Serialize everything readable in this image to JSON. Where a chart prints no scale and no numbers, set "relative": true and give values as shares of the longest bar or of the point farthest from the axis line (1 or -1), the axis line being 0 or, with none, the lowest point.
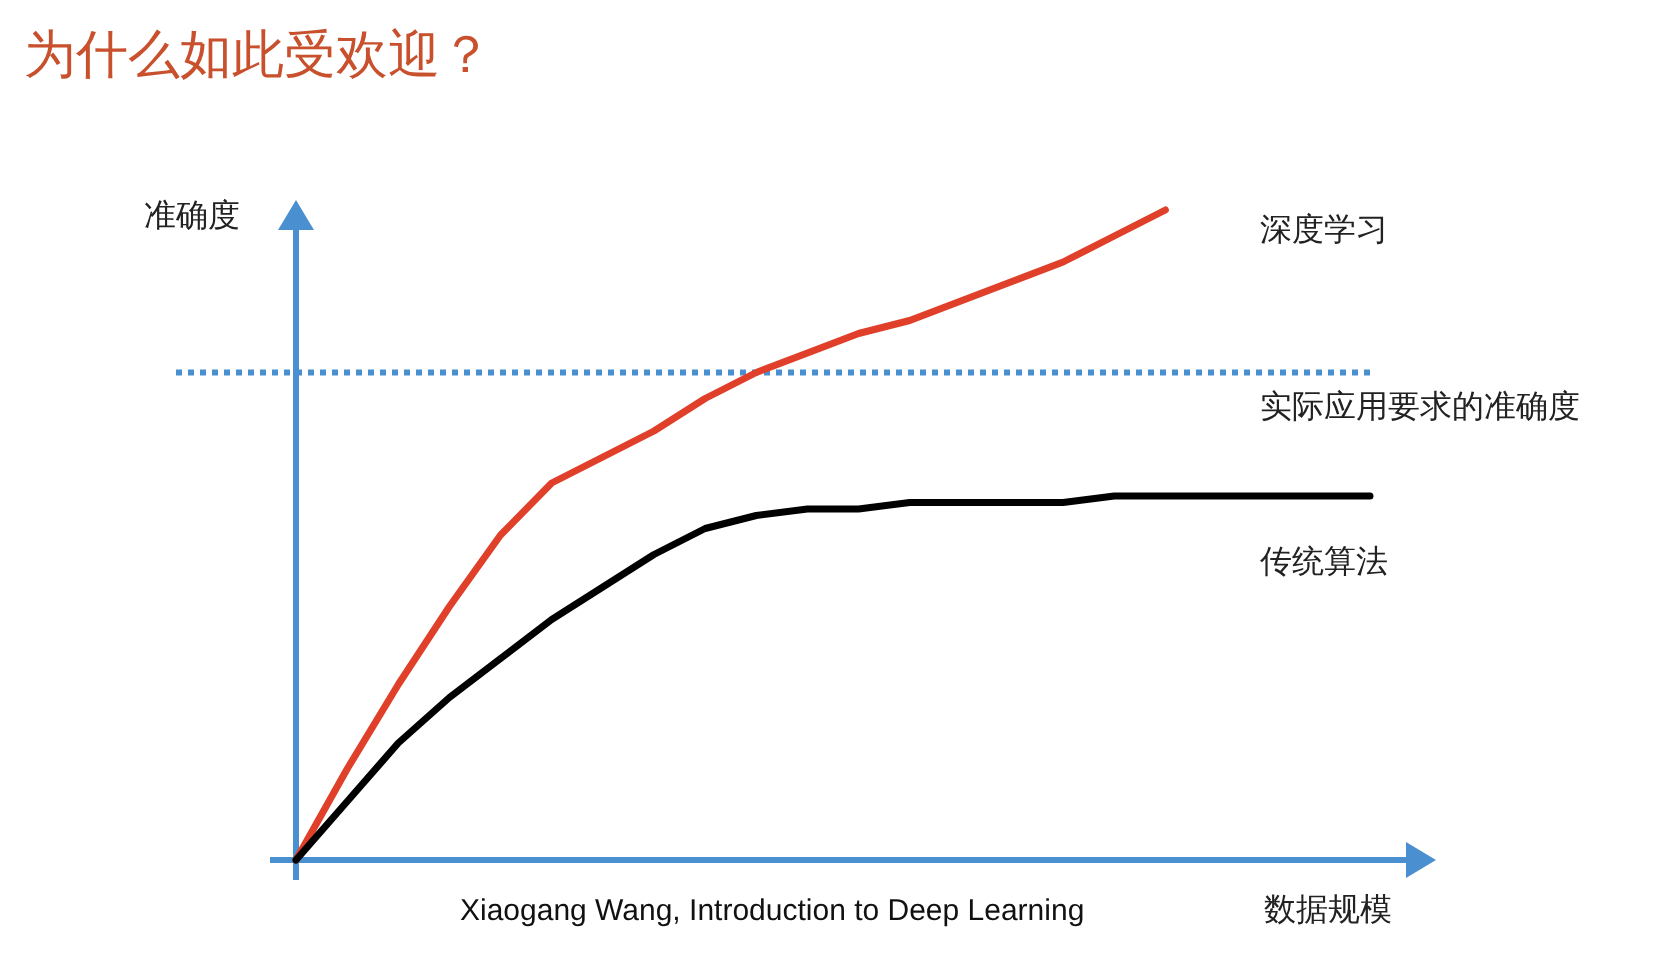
{
  "chart_data": {
    "type": "line",
    "title": "为什么如此受欢迎？",
    "xlabel": "数据规模",
    "ylabel": "准确度",
    "relative": true,
    "categories": [
      null,
      null,
      null,
      null,
      null,
      null,
      null,
      null,
      null,
      null,
      null,
      null,
      null,
      null,
      null,
      null,
      null,
      null,
      null,
      null,
      null,
      null
    ],
    "series": [
      {
        "name": "深度学习",
        "color": "#e0402a",
        "values": [
          0,
          0.14,
          0.27,
          0.39,
          0.5,
          0.58,
          0.62,
          0.66,
          0.71,
          0.75,
          0.78,
          0.81,
          0.83,
          0.86,
          0.89,
          0.92,
          0.96,
          1.0,
          null,
          null,
          null,
          null
        ]
      },
      {
        "name": "传统算法",
        "color": "#000000",
        "values": [
          0,
          0.09,
          0.18,
          0.25,
          0.31,
          0.37,
          0.42,
          0.47,
          0.51,
          0.53,
          0.54,
          0.54,
          0.55,
          0.55,
          0.55,
          0.55,
          0.56,
          0.56,
          0.56,
          0.56,
          0.56,
          0.56
        ]
      }
    ],
    "ref_lines": [
      {
        "axis": "y",
        "value": 0.75,
        "label": "实际应用要求的准确度",
        "color": "#4a90d0",
        "line_style": "dotted"
      }
    ],
    "annotations": [
      "Xiaogang Wang, Introduction to Deep Learning"
    ]
  }
}
